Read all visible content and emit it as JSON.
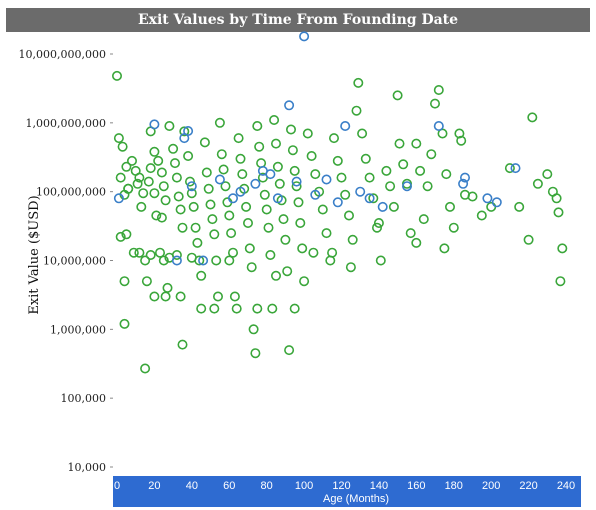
{
  "chart_data": {
    "type": "scatter",
    "title": "Exit Values by Time From Founding Date",
    "xlabel": "Age (Months)",
    "ylabel": "Exit Value ($USD)",
    "x_ticks": [
      "0",
      "20",
      "40",
      "60",
      "80",
      "100",
      "120",
      "140",
      "160",
      "180",
      "200",
      "220",
      "240"
    ],
    "y_ticks": [
      "10,000",
      "100,000",
      "1,000,000",
      "10,000,000",
      "100,000,000",
      "1,000,000,000",
      "10,000,000,000"
    ],
    "xlim": [
      0,
      245
    ],
    "ylim": [
      10000,
      16000000000
    ],
    "y_scale": "log",
    "grid": false,
    "colors": {
      "green": "#3aa63a",
      "blue": "#3a7fc8",
      "title_bg": "#6b6b6b",
      "axis_bg": "#2e6bd1"
    },
    "series": [
      {
        "color": "green",
        "points": [
          [
            0,
            4800000000
          ],
          [
            1,
            600000000
          ],
          [
            3,
            450000000
          ],
          [
            2,
            160000000
          ],
          [
            4,
            90000000
          ],
          [
            5,
            230000000
          ],
          [
            6,
            110000000
          ],
          [
            2,
            22000000
          ],
          [
            5,
            24000000
          ],
          [
            4,
            5000000
          ],
          [
            4,
            1200000
          ],
          [
            8,
            280000000
          ],
          [
            10,
            200000000
          ],
          [
            12,
            160000000
          ],
          [
            11,
            130000000
          ],
          [
            14,
            95000000
          ],
          [
            13,
            60000000
          ],
          [
            15,
            10000000
          ],
          [
            16,
            5000000
          ],
          [
            12,
            13000000
          ],
          [
            17,
            140000000
          ],
          [
            18,
            220000000
          ],
          [
            18,
            750000000
          ],
          [
            20,
            380000000
          ],
          [
            20,
            95000000
          ],
          [
            21,
            45000000
          ],
          [
            22,
            280000000
          ],
          [
            24,
            190000000
          ],
          [
            25,
            120000000
          ],
          [
            26,
            75000000
          ],
          [
            24,
            42000000
          ],
          [
            23,
            13000000
          ],
          [
            25,
            10000000
          ],
          [
            27,
            4000000
          ],
          [
            26,
            3000000
          ],
          [
            28,
            900000000
          ],
          [
            30,
            420000000
          ],
          [
            31,
            260000000
          ],
          [
            32,
            160000000
          ],
          [
            33,
            85000000
          ],
          [
            34,
            55000000
          ],
          [
            35,
            30000000
          ],
          [
            32,
            12000000
          ],
          [
            34,
            3000000
          ],
          [
            35,
            600000
          ],
          [
            36,
            750000000
          ],
          [
            38,
            330000000
          ],
          [
            39,
            140000000
          ],
          [
            40,
            95000000
          ],
          [
            41,
            60000000
          ],
          [
            42,
            30000000
          ],
          [
            43,
            18000000
          ],
          [
            44,
            10000000
          ],
          [
            45,
            6000000
          ],
          [
            47,
            520000000
          ],
          [
            48,
            190000000
          ],
          [
            49,
            110000000
          ],
          [
            50,
            65000000
          ],
          [
            51,
            40000000
          ],
          [
            52,
            24000000
          ],
          [
            53,
            10000000
          ],
          [
            54,
            3000000
          ],
          [
            55,
            1000000000
          ],
          [
            56,
            350000000
          ],
          [
            57,
            210000000
          ],
          [
            58,
            120000000
          ],
          [
            59,
            70000000
          ],
          [
            60,
            45000000
          ],
          [
            61,
            25000000
          ],
          [
            62,
            13000000
          ],
          [
            63,
            3000000
          ],
          [
            64,
            2000000
          ],
          [
            65,
            600000000
          ],
          [
            66,
            300000000
          ],
          [
            67,
            180000000
          ],
          [
            68,
            110000000
          ],
          [
            69,
            60000000
          ],
          [
            70,
            35000000
          ],
          [
            71,
            15000000
          ],
          [
            72,
            8000000
          ],
          [
            73,
            1000000
          ],
          [
            74,
            450000
          ],
          [
            75,
            900000000
          ],
          [
            76,
            450000000
          ],
          [
            77,
            260000000
          ],
          [
            78,
            160000000
          ],
          [
            79,
            90000000
          ],
          [
            80,
            55000000
          ],
          [
            81,
            30000000
          ],
          [
            82,
            12000000
          ],
          [
            83,
            2000000
          ],
          [
            84,
            1100000000
          ],
          [
            85,
            500000000
          ],
          [
            86,
            230000000
          ],
          [
            87,
            130000000
          ],
          [
            88,
            75000000
          ],
          [
            89,
            40000000
          ],
          [
            90,
            20000000
          ],
          [
            91,
            7000000
          ],
          [
            92,
            500000
          ],
          [
            93,
            800000000
          ],
          [
            94,
            400000000
          ],
          [
            95,
            200000000
          ],
          [
            96,
            120000000
          ],
          [
            97,
            70000000
          ],
          [
            98,
            35000000
          ],
          [
            99,
            15000000
          ],
          [
            100,
            5000000
          ],
          [
            102,
            700000000
          ],
          [
            104,
            330000000
          ],
          [
            106,
            180000000
          ],
          [
            108,
            100000000
          ],
          [
            110,
            55000000
          ],
          [
            112,
            25000000
          ],
          [
            114,
            10000000
          ],
          [
            116,
            600000000
          ],
          [
            118,
            280000000
          ],
          [
            120,
            160000000
          ],
          [
            122,
            90000000
          ],
          [
            124,
            45000000
          ],
          [
            126,
            20000000
          ],
          [
            128,
            1500000000
          ],
          [
            129,
            3800000000
          ],
          [
            131,
            700000000
          ],
          [
            133,
            300000000
          ],
          [
            135,
            160000000
          ],
          [
            137,
            80000000
          ],
          [
            139,
            30000000
          ],
          [
            141,
            10000000
          ],
          [
            144,
            200000000
          ],
          [
            146,
            120000000
          ],
          [
            148,
            60000000
          ],
          [
            150,
            2500000000
          ],
          [
            151,
            500000000
          ],
          [
            153,
            250000000
          ],
          [
            155,
            130000000
          ],
          [
            157,
            25000000
          ],
          [
            160,
            500000000
          ],
          [
            162,
            200000000
          ],
          [
            164,
            40000000
          ],
          [
            166,
            120000000
          ],
          [
            168,
            350000000
          ],
          [
            170,
            1900000000
          ],
          [
            172,
            3000000000
          ],
          [
            174,
            700000000
          ],
          [
            176,
            180000000
          ],
          [
            178,
            60000000
          ],
          [
            180,
            30000000
          ],
          [
            183,
            700000000
          ],
          [
            184,
            550000000
          ],
          [
            186,
            90000000
          ],
          [
            190,
            85000000
          ],
          [
            200,
            60000000
          ],
          [
            210,
            220000000
          ],
          [
            220,
            20000000
          ],
          [
            222,
            1200000000
          ],
          [
            225,
            130000000
          ],
          [
            230,
            180000000
          ],
          [
            233,
            100000000
          ],
          [
            235,
            80000000
          ],
          [
            236,
            50000000
          ],
          [
            237,
            5000000
          ],
          [
            238,
            15000000
          ],
          [
            15,
            270000
          ],
          [
            28,
            11000000
          ],
          [
            40,
            11000000
          ],
          [
            6,
            110000000
          ],
          [
            9,
            13000000
          ],
          [
            18,
            12000000
          ],
          [
            20,
            3000000
          ],
          [
            45,
            2000000
          ],
          [
            52,
            2000000
          ],
          [
            60,
            10000000
          ],
          [
            75,
            2000000
          ],
          [
            85,
            6000000
          ],
          [
            95,
            2000000
          ],
          [
            105,
            13000000
          ],
          [
            115,
            13000000
          ],
          [
            125,
            8000000
          ],
          [
            140,
            35000000
          ],
          [
            160,
            18000000
          ],
          [
            175,
            15000000
          ],
          [
            195,
            45000000
          ],
          [
            215,
            60000000
          ]
        ]
      },
      {
        "color": "blue",
        "points": [
          [
            1,
            80000000
          ],
          [
            20,
            950000000
          ],
          [
            36,
            600000000
          ],
          [
            38,
            760000000
          ],
          [
            40,
            120000000
          ],
          [
            55,
            150000000
          ],
          [
            62,
            80000000
          ],
          [
            66,
            100000000
          ],
          [
            74,
            130000000
          ],
          [
            78,
            200000000
          ],
          [
            82,
            180000000
          ],
          [
            86,
            80000000
          ],
          [
            92,
            1800000000
          ],
          [
            96,
            140000000
          ],
          [
            100,
            18000000000
          ],
          [
            106,
            90000000
          ],
          [
            112,
            150000000
          ],
          [
            118,
            70000000
          ],
          [
            122,
            900000000
          ],
          [
            130,
            100000000
          ],
          [
            135,
            80000000
          ],
          [
            142,
            60000000
          ],
          [
            155,
            120000000
          ],
          [
            172,
            900000000
          ],
          [
            185,
            130000000
          ],
          [
            186,
            160000000
          ],
          [
            198,
            80000000
          ],
          [
            203,
            70000000
          ],
          [
            213,
            220000000
          ],
          [
            32,
            10000000
          ],
          [
            46,
            10000000
          ]
        ]
      }
    ]
  }
}
